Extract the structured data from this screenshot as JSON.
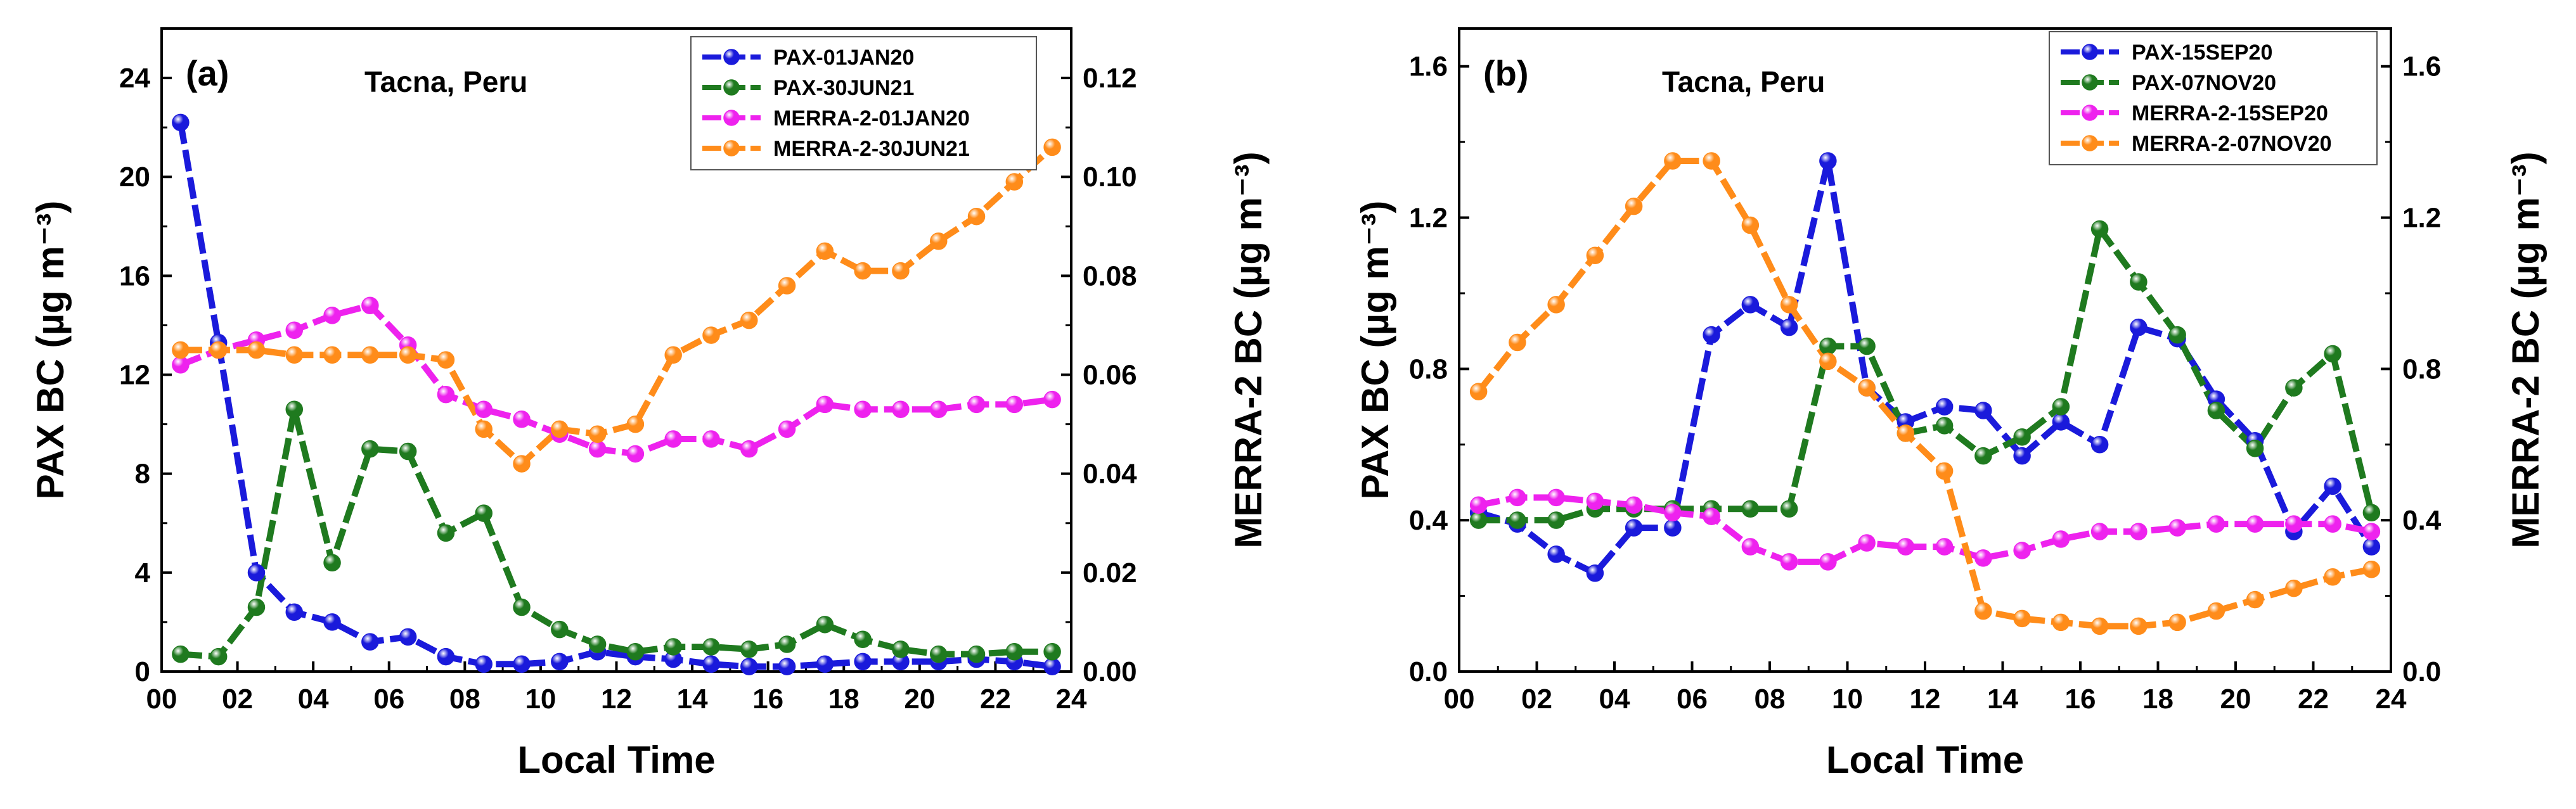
{
  "chart_data": [
    {
      "type": "line",
      "panel_label": "(a)",
      "site": "Tacna, Peru",
      "xlabel": "Local Time",
      "ylabel_left": "PAX BC (µg m⁻³)",
      "ylabel_right": "MERRA-2 BC (µg m⁻³)",
      "xlim": [
        0,
        24
      ],
      "ylim_left": [
        0,
        26
      ],
      "ylim_right": [
        0,
        0.13
      ],
      "x_ticks": [
        "00",
        "02",
        "04",
        "06",
        "08",
        "10",
        "12",
        "14",
        "16",
        "18",
        "20",
        "22",
        "24"
      ],
      "y_left_ticks": [
        "0",
        "4",
        "8",
        "12",
        "16",
        "20",
        "24"
      ],
      "y_right_ticks": [
        "0.00",
        "0.02",
        "0.04",
        "0.06",
        "0.08",
        "0.10",
        "0.12"
      ],
      "legend_position": "top-right",
      "x": [
        0.5,
        1.5,
        2.5,
        3.5,
        4.5,
        5.5,
        6.5,
        7.5,
        8.5,
        9.5,
        10.5,
        11.5,
        12.5,
        13.5,
        14.5,
        15.5,
        16.5,
        17.5,
        18.5,
        19.5,
        20.5,
        21.5,
        22.5,
        23.5
      ],
      "series": [
        {
          "name": "PAX-01JAN20",
          "axis": "left",
          "color": "#1a1adb",
          "values": [
            22.2,
            13.3,
            4.0,
            2.4,
            2.0,
            1.2,
            1.4,
            0.6,
            0.3,
            0.3,
            0.4,
            0.8,
            0.6,
            0.5,
            0.3,
            0.2,
            0.2,
            0.3,
            0.4,
            0.4,
            0.4,
            0.5,
            0.4,
            0.2
          ]
        },
        {
          "name": "PAX-30JUN21",
          "axis": "left",
          "color": "#1f7a1f",
          "values": [
            0.7,
            0.6,
            2.6,
            10.6,
            4.4,
            9.0,
            8.9,
            5.6,
            6.4,
            2.6,
            1.7,
            1.1,
            0.8,
            1.0,
            1.0,
            0.9,
            1.1,
            1.9,
            1.3,
            0.9,
            0.7,
            0.7,
            0.8,
            0.8
          ]
        },
        {
          "name": "MERRA-2-01JAN20",
          "axis": "right",
          "color": "#ee22ee",
          "values": [
            0.062,
            0.065,
            0.067,
            0.069,
            0.072,
            0.074,
            0.066,
            0.056,
            0.053,
            0.051,
            0.048,
            0.045,
            0.044,
            0.047,
            0.047,
            0.045,
            0.049,
            0.054,
            0.053,
            0.053,
            0.053,
            0.054,
            0.054,
            0.055
          ]
        },
        {
          "name": "MERRA-2-30JUN21",
          "axis": "right",
          "color": "#ff8c1a",
          "values": [
            0.065,
            0.065,
            0.065,
            0.064,
            0.064,
            0.064,
            0.064,
            0.063,
            0.049,
            0.042,
            0.049,
            0.048,
            0.05,
            0.064,
            0.068,
            0.071,
            0.078,
            0.085,
            0.081,
            0.081,
            0.087,
            0.092,
            0.099,
            0.106
          ]
        }
      ]
    },
    {
      "type": "line",
      "panel_label": "(b)",
      "site": "Tacna, Peru",
      "xlabel": "Local Time",
      "ylabel_left": "PAX BC (µg m⁻³)",
      "ylabel_right": "MERRA-2 BC (µg m⁻³)",
      "xlim": [
        0,
        24
      ],
      "ylim_left": [
        0,
        1.7
      ],
      "ylim_right": [
        0,
        1.7
      ],
      "x_ticks": [
        "00",
        "02",
        "04",
        "06",
        "08",
        "10",
        "12",
        "14",
        "16",
        "18",
        "20",
        "22",
        "24"
      ],
      "y_left_ticks": [
        "0.0",
        "0.4",
        "0.8",
        "1.2",
        "1.6"
      ],
      "y_right_ticks": [
        "0.0",
        "0.4",
        "0.8",
        "1.2",
        "1.6"
      ],
      "legend_position": "top-right",
      "x": [
        0.5,
        1.5,
        2.5,
        3.5,
        4.5,
        5.5,
        6.5,
        7.5,
        8.5,
        9.5,
        10.5,
        11.5,
        12.5,
        13.5,
        14.5,
        15.5,
        16.5,
        17.5,
        18.5,
        19.5,
        20.5,
        21.5,
        22.5,
        23.5
      ],
      "series": [
        {
          "name": "PAX-15SEP20",
          "axis": "left",
          "color": "#1a1adb",
          "values": [
            0.42,
            0.39,
            0.31,
            0.26,
            0.38,
            0.38,
            0.89,
            0.97,
            0.91,
            1.35,
            0.75,
            0.66,
            0.7,
            0.69,
            0.57,
            0.66,
            0.6,
            0.91,
            0.88,
            0.72,
            0.61,
            0.37,
            0.49,
            0.33
          ]
        },
        {
          "name": "PAX-07NOV20",
          "axis": "left",
          "color": "#1f7a1f",
          "values": [
            0.4,
            0.4,
            0.4,
            0.43,
            0.43,
            0.43,
            0.43,
            0.43,
            0.43,
            0.86,
            0.86,
            0.63,
            0.65,
            0.57,
            0.62,
            0.7,
            1.17,
            1.03,
            0.89,
            0.69,
            0.59,
            0.75,
            0.84,
            0.42
          ]
        },
        {
          "name": "MERRA-2-15SEP20",
          "axis": "right",
          "color": "#ee22ee",
          "values": [
            0.44,
            0.46,
            0.46,
            0.45,
            0.44,
            0.42,
            0.41,
            0.33,
            0.29,
            0.29,
            0.34,
            0.33,
            0.33,
            0.3,
            0.32,
            0.35,
            0.37,
            0.37,
            0.38,
            0.39,
            0.39,
            0.39,
            0.39,
            0.37
          ]
        },
        {
          "name": "MERRA-2-07NOV20",
          "axis": "right",
          "color": "#ff8c1a",
          "values": [
            0.74,
            0.87,
            0.97,
            1.1,
            1.23,
            1.35,
            1.35,
            1.18,
            0.97,
            0.82,
            0.75,
            0.63,
            0.53,
            0.16,
            0.14,
            0.13,
            0.12,
            0.12,
            0.13,
            0.16,
            0.19,
            0.22,
            0.25,
            0.27
          ]
        }
      ]
    }
  ]
}
